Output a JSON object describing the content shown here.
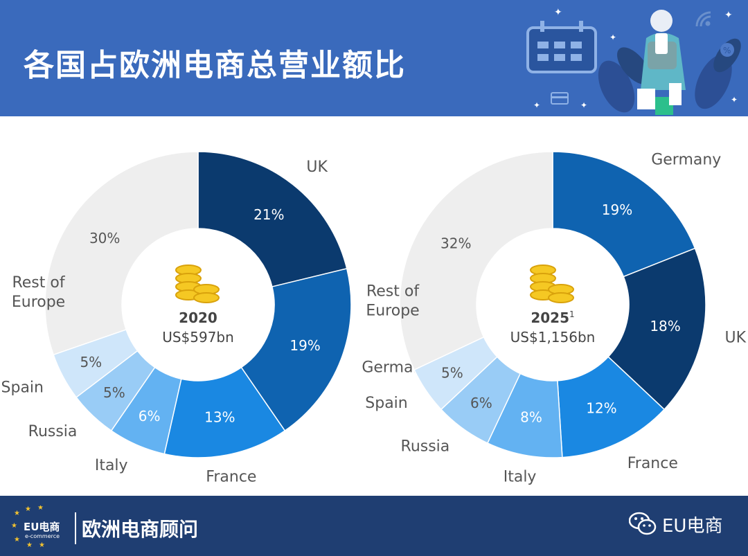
{
  "header": {
    "title": "各国占欧洲电商总营业额比"
  },
  "chart_data": [
    {
      "type": "pie",
      "title": "2020",
      "subtitle": "US$597bn",
      "slices": [
        {
          "label": "UK",
          "value": 21,
          "pct_label": "21%",
          "color": "#0b3a6e"
        },
        {
          "label": "Germany",
          "value": 19,
          "pct_label": "19%",
          "color": "#0f63b0"
        },
        {
          "label": "France",
          "value": 13,
          "pct_label": "13%",
          "color": "#1a88e2"
        },
        {
          "label": "Italy",
          "value": 6,
          "pct_label": "6%",
          "color": "#63b2f2"
        },
        {
          "label": "Russia",
          "value": 5,
          "pct_label": "5%",
          "color": "#99ccf6"
        },
        {
          "label": "Spain",
          "value": 5,
          "pct_label": "5%",
          "color": "#cfe6fa"
        },
        {
          "label": "Rest of Europe",
          "value": 30,
          "pct_label": "30%",
          "color": "#eeeeee"
        }
      ]
    },
    {
      "type": "pie",
      "title": "2025",
      "title_note": "1",
      "subtitle": "US$1,156bn",
      "slices": [
        {
          "label": "Germany",
          "value": 19,
          "pct_label": "19%",
          "color": "#0f63b0"
        },
        {
          "label": "UK",
          "value": 18,
          "pct_label": "18%",
          "color": "#0b3a6e"
        },
        {
          "label": "France",
          "value": 12,
          "pct_label": "12%",
          "color": "#1a88e2"
        },
        {
          "label": "Italy",
          "value": 8,
          "pct_label": "8%",
          "color": "#63b2f2"
        },
        {
          "label": "Russia",
          "value": 6,
          "pct_label": "6%",
          "color": "#99ccf6"
        },
        {
          "label": "Spain",
          "value": 5,
          "pct_label": "5%",
          "color": "#cfe6fa"
        },
        {
          "label": "Rest of Europe",
          "value": 32,
          "pct_label": "32%",
          "color": "#eeeeee"
        }
      ]
    }
  ],
  "footer": {
    "logo_text": "EU电商",
    "logo_subtext": "e-commerce",
    "brand_name": "欧洲电商顾问",
    "wechat_icon": "wechat-icon",
    "account_name": "EU电商"
  }
}
